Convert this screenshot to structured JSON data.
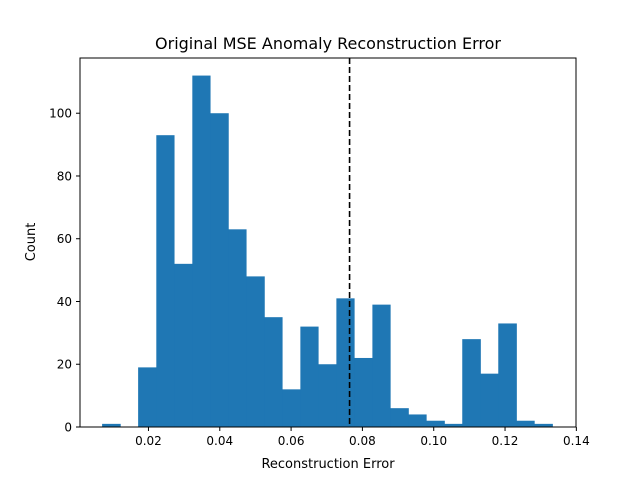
{
  "chart_data": {
    "type": "bar",
    "title": "Original MSE Anomaly Reconstruction Error",
    "xlabel": "Reconstruction Error",
    "ylabel": "Count",
    "xlim": [
      0.0008,
      0.1399
    ],
    "ylim": [
      0,
      117.6
    ],
    "xticks": [
      "0.02",
      "0.04",
      "0.06",
      "0.08",
      "0.10",
      "0.12",
      "0.14"
    ],
    "yticks": [
      "0",
      "20",
      "40",
      "60",
      "80",
      "100"
    ],
    "bin_edges": [
      0.007,
      0.0121,
      0.0171,
      0.0222,
      0.0272,
      0.0323,
      0.0373,
      0.0424,
      0.0474,
      0.0525,
      0.0575,
      0.0626,
      0.0676,
      0.0727,
      0.0777,
      0.0828,
      0.0878,
      0.0929,
      0.0979,
      0.103,
      0.108,
      0.1131,
      0.1181,
      0.1232,
      0.1282,
      0.1333
    ],
    "counts": [
      1,
      0,
      19,
      93,
      52,
      112,
      100,
      63,
      48,
      35,
      12,
      32,
      20,
      41,
      22,
      39,
      6,
      4,
      2,
      1,
      28,
      17,
      33,
      2,
      1
    ],
    "threshold": 0.0764,
    "grid": false,
    "bar_color": "#1f77b4",
    "threshold_color": "#000000"
  }
}
